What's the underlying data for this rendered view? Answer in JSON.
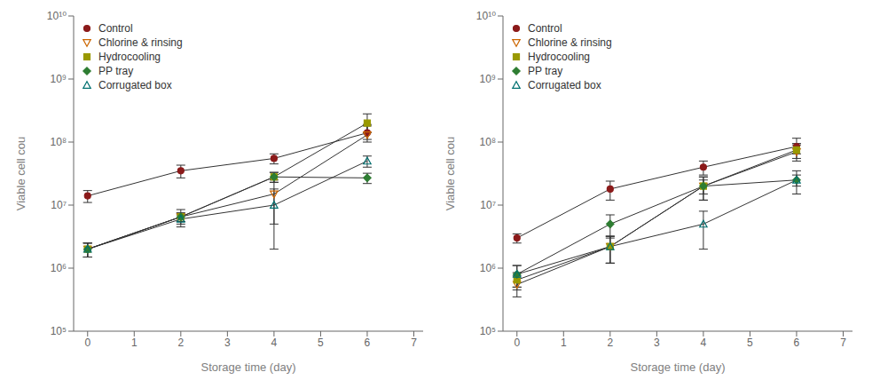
{
  "chart_data": [
    {
      "type": "line",
      "xlabel": "Storage time (day)",
      "ylabel": "Viable cell cou",
      "log": "y",
      "grid": false,
      "legend": "upper left",
      "color": "#333333",
      "x": [
        0,
        2,
        4,
        6
      ],
      "xlim": [
        -0.3,
        7.2
      ],
      "xticks": [
        0,
        1,
        2,
        3,
        4,
        5,
        6,
        7
      ],
      "ylim": [
        100000.0,
        10000000000.0
      ],
      "yticks": [
        {
          "value": 100000.0,
          "label": "10⁵"
        },
        {
          "value": 1000000.0,
          "label": "10⁶"
        },
        {
          "value": 10000000.0,
          "label": "10⁷"
        },
        {
          "value": 100000000.0,
          "label": "10⁸"
        },
        {
          "value": 1000000000.0,
          "label": "10⁹"
        },
        {
          "value": 10000000000.0,
          "label": "10¹⁰"
        }
      ],
      "series": [
        {
          "name": "Control",
          "color": "#8B1A1A",
          "marker": "circle",
          "values": [
            14000000.0,
            35000000.0,
            55000000.0,
            140000000.0
          ],
          "error_low": [
            3000000.0,
            8000000.0,
            10000000.0,
            30000000.0
          ],
          "error_high": [
            3000000.0,
            8000000.0,
            10000000.0,
            50000000.0
          ]
        },
        {
          "name": "Chlorine & rinsing",
          "color": "#CC6600",
          "marker": "triangle_down_open",
          "values": [
            2000000.0,
            6500000.0,
            15000000.0,
            130000000.0
          ],
          "error_low": [
            500000.0,
            2000000.0,
            10000000.0,
            30000000.0
          ],
          "error_high": [
            500000.0,
            2000000.0,
            10000000.0,
            50000000.0
          ]
        },
        {
          "name": "Hydrocooling",
          "color": "#999900",
          "marker": "square",
          "values": [
            2000000.0,
            6500000.0,
            28000000.0,
            200000000.0
          ],
          "error_low": [
            500000.0,
            1000000.0,
            5000000.0,
            60000000.0
          ],
          "error_high": [
            500000.0,
            1000000.0,
            5000000.0,
            80000000.0
          ]
        },
        {
          "name": "PP tray",
          "color": "#2E7D32",
          "marker": "diamond",
          "values": [
            2000000.0,
            6500000.0,
            28000000.0,
            27000000.0
          ],
          "error_low": [
            500000.0,
            1000000.0,
            5000000.0,
            5000000.0
          ],
          "error_high": [
            500000.0,
            1000000.0,
            5000000.0,
            5000000.0
          ]
        },
        {
          "name": "Corrugated box",
          "color": "#007070",
          "marker": "triangle_up_open",
          "values": [
            2000000.0,
            6000000.0,
            10000000.0,
            50000000.0
          ],
          "error_low": [
            500000.0,
            1000000.0,
            8000000.0,
            10000000.0
          ],
          "error_high": [
            500000.0,
            1000000.0,
            8000000.0,
            10000000.0
          ]
        }
      ]
    },
    {
      "type": "line",
      "xlabel": "Storage time (day)",
      "ylabel": "Viable cell cou",
      "log": "y",
      "grid": false,
      "legend": "upper left",
      "color": "#333333",
      "x": [
        0,
        2,
        4,
        6
      ],
      "xlim": [
        -0.3,
        7.2
      ],
      "xticks": [
        0,
        1,
        2,
        3,
        4,
        5,
        6,
        7
      ],
      "ylim": [
        100000.0,
        10000000000.0
      ],
      "yticks": [
        {
          "value": 100000.0,
          "label": "10⁵"
        },
        {
          "value": 1000000.0,
          "label": "10⁶"
        },
        {
          "value": 10000000.0,
          "label": "10⁷"
        },
        {
          "value": 100000000.0,
          "label": "10⁸"
        },
        {
          "value": 1000000000.0,
          "label": "10⁹"
        },
        {
          "value": 10000000000.0,
          "label": "10¹⁰"
        }
      ],
      "series": [
        {
          "name": "Control",
          "color": "#8B1A1A",
          "marker": "circle",
          "values": [
            3000000.0,
            18000000.0,
            40000000.0,
            85000000.0
          ],
          "error_low": [
            500000.0,
            6000000.0,
            10000000.0,
            20000000.0
          ],
          "error_high": [
            500000.0,
            6000000.0,
            10000000.0,
            30000000.0
          ]
        },
        {
          "name": "Chlorine & rinsing",
          "color": "#CC6600",
          "marker": "triangle_down_open",
          "values": [
            550000.0,
            2200000.0,
            20000000.0,
            70000000.0
          ],
          "error_low": [
            200000.0,
            1000000.0,
            8000000.0,
            20000000.0
          ],
          "error_high": [
            200000.0,
            1000000.0,
            8000000.0,
            20000000.0
          ]
        },
        {
          "name": "Hydrocooling",
          "color": "#999900",
          "marker": "square",
          "values": [
            650000.0,
            2200000.0,
            20000000.0,
            75000000.0
          ],
          "error_low": [
            200000.0,
            1000000.0,
            8000000.0,
            20000000.0
          ],
          "error_high": [
            200000.0,
            1000000.0,
            8000000.0,
            20000000.0
          ]
        },
        {
          "name": "PP tray",
          "color": "#2E7D32",
          "marker": "diamond",
          "values": [
            800000.0,
            5000000.0,
            20000000.0,
            25000000.0
          ],
          "error_low": [
            300000.0,
            2000000.0,
            5000000.0,
            5000000.0
          ],
          "error_high": [
            300000.0,
            2000000.0,
            5000000.0,
            5000000.0
          ]
        },
        {
          "name": "Corrugated box",
          "color": "#007070",
          "marker": "triangle_up_open",
          "values": [
            800000.0,
            2200000.0,
            5000000.0,
            25000000.0
          ],
          "error_low": [
            300000.0,
            1000000.0,
            3000000.0,
            10000000.0
          ],
          "error_high": [
            300000.0,
            1000000.0,
            3000000.0,
            10000000.0
          ]
        }
      ]
    }
  ]
}
